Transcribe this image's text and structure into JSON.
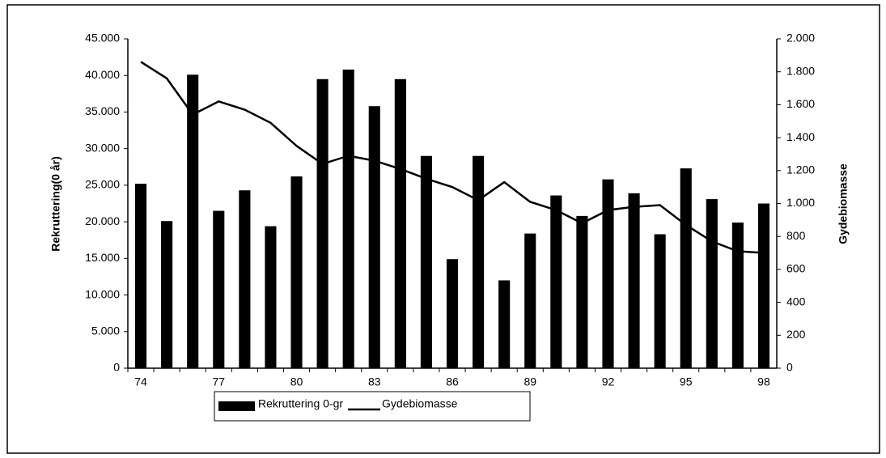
{
  "chart_data": {
    "type": "bar",
    "categories": [
      "74",
      null,
      null,
      "77",
      null,
      null,
      "80",
      null,
      null,
      "83",
      null,
      null,
      "86",
      null,
      null,
      "89",
      null,
      null,
      "92",
      null,
      null,
      "95",
      null,
      null,
      "98"
    ],
    "series": [
      {
        "name": "Rekruttering 0-gr",
        "type": "bar",
        "color": "#000000",
        "axis": "y",
        "values": [
          25200,
          20100,
          40100,
          21500,
          24300,
          19400,
          26200,
          39500,
          40800,
          35800,
          39500,
          29000,
          14900,
          29000,
          12000,
          18400,
          23600,
          20800,
          25800,
          23900,
          18300,
          27300,
          23100,
          19900,
          22500
        ]
      },
      {
        "name": "Gydebiomasse",
        "type": "line",
        "color": "#000000",
        "axis": "y2",
        "values": [
          1860,
          1760,
          1540,
          1620,
          1570,
          1490,
          1350,
          1240,
          1290,
          1260,
          1210,
          1150,
          1100,
          1020,
          1130,
          1010,
          960,
          880,
          960,
          980,
          990,
          870,
          770,
          710,
          700
        ]
      }
    ],
    "ylabel": "Rekruttering(0 år)",
    "y2label": "Gydebiomasse",
    "ylim": [
      0,
      45000
    ],
    "yticks": [
      0,
      {
        "value": 5000,
        "label": "5.000"
      },
      {
        "value": 10000,
        "label": "10.000"
      },
      {
        "value": 15000,
        "label": "15.000"
      },
      {
        "value": 20000,
        "label": "20.000"
      },
      {
        "value": 25000,
        "label": "25.000"
      },
      {
        "value": 30000,
        "label": "30.000"
      },
      {
        "value": 35000,
        "label": "35.000"
      },
      {
        "value": 40000,
        "label": "40.000"
      },
      {
        "value": 45000,
        "label": "45.000"
      }
    ],
    "y2lim": [
      0,
      2000
    ],
    "y2ticks": [
      0,
      200,
      400,
      600,
      800,
      {
        "value": 1000,
        "label": "1.000"
      },
      {
        "value": 1200,
        "label": "1.200"
      },
      {
        "value": 1400,
        "label": "1.400"
      },
      {
        "value": 1600,
        "label": "1.600"
      },
      {
        "value": 1800,
        "label": "1.800"
      },
      {
        "value": 2000,
        "label": "2.000"
      }
    ],
    "legend": "bottom"
  }
}
